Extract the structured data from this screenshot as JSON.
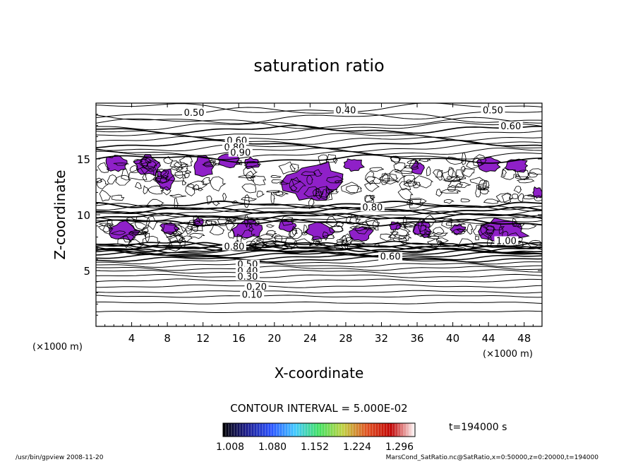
{
  "chart_data": {
    "type": "contour",
    "title": "saturation ratio",
    "xlabel": "X-coordinate",
    "ylabel": "Z-coordinate",
    "x_unit": "(×1000 m)",
    "y_unit": "(×1000 m)",
    "xlim": [
      0,
      50
    ],
    "ylim": [
      0,
      20
    ],
    "x_ticks": [
      4,
      8,
      12,
      16,
      20,
      24,
      28,
      32,
      36,
      40,
      44,
      48
    ],
    "y_ticks": [
      5,
      10,
      15
    ],
    "x_tick_labels": [
      "4",
      "8",
      "12",
      "16",
      "20",
      "24",
      "28",
      "32",
      "36",
      "40",
      "44",
      "48"
    ],
    "y_tick_labels": [
      "5",
      "10",
      "15"
    ],
    "contour_interval_label": "CONTOUR INTERVAL = 5.000E-02",
    "contour_labels": [
      {
        "text": "0.50",
        "x": 11,
        "z": 19
      },
      {
        "text": "0.40",
        "x": 28,
        "z": 19.2
      },
      {
        "text": "0.50",
        "x": 44.5,
        "z": 19.2
      },
      {
        "text": "0.60",
        "x": 46.5,
        "z": 17.8
      },
      {
        "text": "0.60",
        "x": 15.8,
        "z": 16.5
      },
      {
        "text": "0.80",
        "x": 15.5,
        "z": 15.9
      },
      {
        "text": "0.90",
        "x": 16.2,
        "z": 15.4
      },
      {
        "text": "0.80",
        "x": 31,
        "z": 10.5
      },
      {
        "text": "0.80",
        "x": 15.5,
        "z": 7.0
      },
      {
        "text": "0.60",
        "x": 33,
        "z": 6.1
      },
      {
        "text": "0.50",
        "x": 17,
        "z": 5.4
      },
      {
        "text": "0.40",
        "x": 17,
        "z": 4.8
      },
      {
        "text": "0.30",
        "x": 17,
        "z": 4.3
      },
      {
        "text": "0.20",
        "x": 18,
        "z": 3.4
      },
      {
        "text": "0.10",
        "x": 17.5,
        "z": 2.7
      },
      {
        "text": "1.00",
        "x": 46,
        "z": 7.5
      }
    ],
    "contour_levels": [
      0.1,
      0.2,
      0.3,
      0.4,
      0.5,
      0.6,
      0.7,
      0.8,
      0.9,
      1.0
    ],
    "shaded_threshold": 1.0,
    "colorbar": {
      "tick_labels": [
        "1.008",
        "1.080",
        "1.152",
        "1.224",
        "1.296"
      ],
      "range": [
        1.008,
        1.296
      ],
      "colormap": [
        "#000000",
        "#1a1a8c",
        "#2850ff",
        "#40c8ff",
        "#40e060",
        "#c0d040",
        "#e05020",
        "#c00000",
        "#ffffff"
      ]
    },
    "fill_color": "#8f20c8",
    "time_label": "t=194000 s"
  },
  "footer": {
    "left": "/usr/bin/gpview   2008-11-20",
    "right": "MarsCond_SatRatio.nc@SatRatio,x=0:50000,z=0:20000,t=194000"
  }
}
